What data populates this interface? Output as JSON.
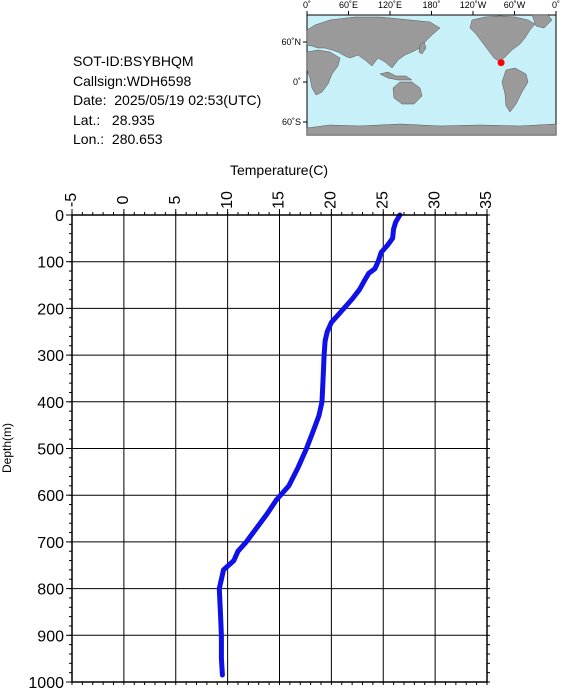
{
  "meta": {
    "sot_id_line": "SOT-ID:BSYBHQM",
    "callsign_line": "Callsign:WDH6598",
    "date_line": "Date:  2025/05/19 02:53(UTC)",
    "lat_line": "Lat.:   28.935",
    "lon_line": "Lon.:  280.653"
  },
  "map": {
    "top_labels": [
      "0˚",
      "60˚E",
      "120˚E",
      "180˚",
      "120˚W",
      "60˚W",
      "0˚"
    ],
    "lat_labels": [
      "60˚N",
      "0˚",
      "60˚S"
    ],
    "ocean_color": "#c8f0f8",
    "land_color": "#9a9a9a",
    "marker_color": "#ff0000",
    "marker_lat": 28.935,
    "marker_lon": 280.653
  },
  "chart_data": {
    "type": "line",
    "title": "",
    "xlabel": "Temperature(C)",
    "ylabel": "Depth(m)",
    "xlim": [
      -5,
      35
    ],
    "ylim": [
      1000,
      0
    ],
    "x_ticks": [
      "-5",
      "0",
      "5",
      "10",
      "15",
      "20",
      "25",
      "30",
      "35"
    ],
    "y_ticks": [
      "0",
      "100",
      "200",
      "300",
      "400",
      "500",
      "600",
      "700",
      "800",
      "900",
      "1000"
    ],
    "grid": true,
    "line_color": "#1010e8",
    "series": [
      {
        "depth": [
          0,
          15,
          30,
          50,
          65,
          80,
          100,
          115,
          125,
          140,
          160,
          180,
          195,
          210,
          230,
          250,
          270,
          300,
          350,
          400,
          430,
          460,
          500,
          540,
          580,
          610,
          640,
          670,
          700,
          720,
          740,
          760,
          780,
          800,
          850,
          900,
          950,
          985
        ],
        "temperature": [
          26.6,
          26.2,
          26.0,
          25.9,
          25.4,
          24.8,
          24.5,
          24.2,
          23.6,
          23.2,
          22.7,
          22.0,
          21.4,
          20.8,
          20.0,
          19.6,
          19.4,
          19.3,
          19.2,
          19.1,
          18.8,
          18.3,
          17.6,
          16.8,
          15.9,
          14.7,
          13.8,
          12.8,
          11.8,
          11.0,
          10.6,
          9.6,
          9.4,
          9.2,
          9.3,
          9.4,
          9.4,
          9.5
        ]
      }
    ]
  }
}
